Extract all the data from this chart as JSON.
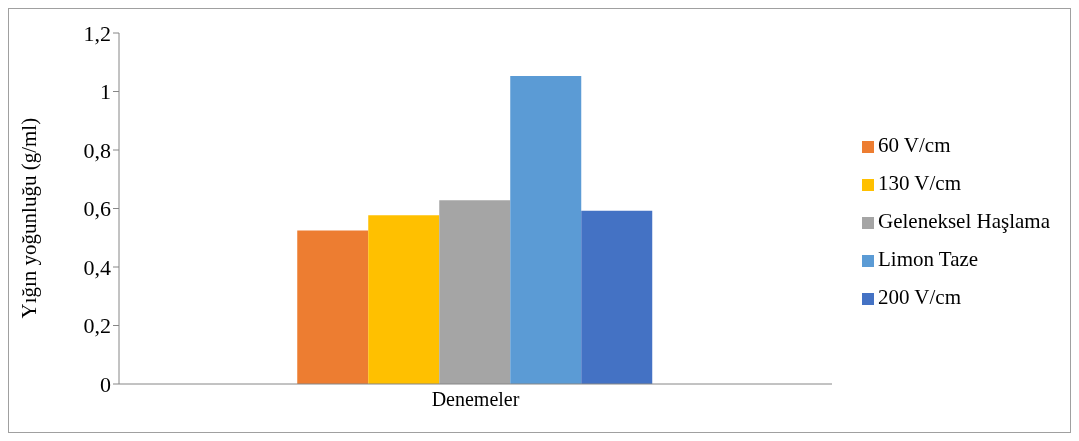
{
  "chart_data": {
    "type": "bar",
    "ylabel": "Yığın yoğunluğu (g/ml)",
    "categories": [
      "Denemeler"
    ],
    "series": [
      {
        "name": "60 V/cm",
        "color": "#ed7d31",
        "values": [
          0.525
        ]
      },
      {
        "name": "130 V/cm",
        "color": "#ffc000",
        "values": [
          0.577
        ]
      },
      {
        "name": "Geleneksel Haşlama",
        "color": "#a5a5a5",
        "values": [
          0.628
        ]
      },
      {
        "name": "Limon Taze",
        "color": "#5b9bd5",
        "values": [
          1.053
        ]
      },
      {
        "name": "200 V/cm",
        "color": "#4472c4",
        "values": [
          0.592
        ]
      }
    ],
    "ylim": [
      0,
      1.2
    ],
    "yticks": [
      0,
      {
        "value": 0.2,
        "label": "0,2"
      },
      {
        "value": 0.4,
        "label": "0,4"
      },
      {
        "value": 0.6,
        "label": "0,6"
      },
      {
        "value": 0.8,
        "label": "0,8"
      },
      1,
      {
        "value": 1.2,
        "label": "1,2"
      }
    ],
    "grid": false,
    "legend": "right"
  }
}
